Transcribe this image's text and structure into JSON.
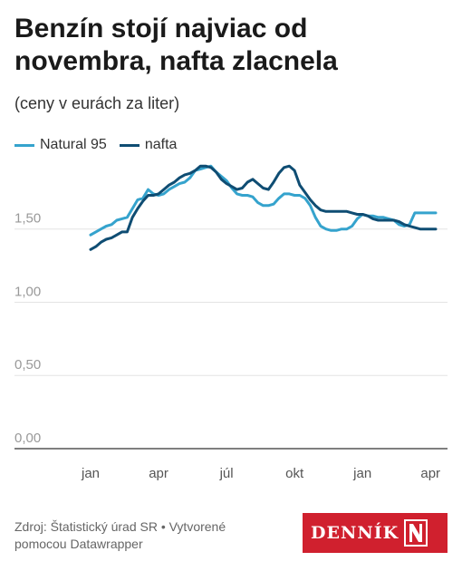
{
  "header": {
    "title": "Benzín stojí najviac od novembra, nafta zlacnela",
    "subtitle": "(ceny v eurách za liter)"
  },
  "legend": [
    {
      "label": "Natural 95",
      "color": "#35a3cd"
    },
    {
      "label": "nafta",
      "color": "#0f4d73"
    }
  ],
  "footer": {
    "source": "Zdroj: Štatistický úrad SR • Vytvorené pomocou Datawrapper"
  },
  "logo": {
    "text": "DENNÍK",
    "mark": "N"
  },
  "chart_data": {
    "type": "line",
    "xlabel": "",
    "ylabel": "",
    "ylim": [
      0,
      1.95
    ],
    "xlim": [
      0,
      66
    ],
    "y_ticks": [
      {
        "value": 0,
        "label": "0,00"
      },
      {
        "value": 0.5,
        "label": "0,50"
      },
      {
        "value": 1.0,
        "label": "1,00"
      },
      {
        "value": 1.5,
        "label": "1,50"
      }
    ],
    "x_ticks": [
      {
        "value": 0,
        "label": "jan"
      },
      {
        "value": 13,
        "label": "apr"
      },
      {
        "value": 26,
        "label": "júl"
      },
      {
        "value": 39,
        "label": "okt"
      },
      {
        "value": 52,
        "label": "jan"
      },
      {
        "value": 65,
        "label": "apr"
      }
    ],
    "grid": true,
    "legend_position": "top-left",
    "series": [
      {
        "name": "Natural 95",
        "color": "#35a3cd",
        "x": [
          0,
          1,
          2,
          3,
          4,
          5,
          6,
          7,
          8,
          9,
          10,
          11,
          12,
          13,
          14,
          15,
          16,
          17,
          18,
          19,
          20,
          21,
          22,
          23,
          24,
          25,
          26,
          27,
          28,
          29,
          30,
          31,
          32,
          33,
          34,
          35,
          36,
          37,
          38,
          39,
          40,
          41,
          42,
          43,
          44,
          45,
          46,
          47,
          48,
          49,
          50,
          51,
          52,
          53,
          54,
          55,
          56,
          57,
          58,
          59,
          60,
          61,
          62,
          63,
          64,
          65,
          66
        ],
        "values": [
          1.46,
          1.48,
          1.5,
          1.52,
          1.53,
          1.56,
          1.57,
          1.58,
          1.64,
          1.7,
          1.71,
          1.77,
          1.74,
          1.73,
          1.74,
          1.77,
          1.79,
          1.81,
          1.82,
          1.85,
          1.9,
          1.91,
          1.92,
          1.93,
          1.89,
          1.86,
          1.83,
          1.78,
          1.74,
          1.73,
          1.73,
          1.72,
          1.68,
          1.66,
          1.66,
          1.67,
          1.71,
          1.74,
          1.74,
          1.73,
          1.73,
          1.71,
          1.66,
          1.58,
          1.52,
          1.5,
          1.49,
          1.49,
          1.5,
          1.5,
          1.52,
          1.57,
          1.6,
          1.59,
          1.59,
          1.58,
          1.58,
          1.57,
          1.56,
          1.53,
          1.52,
          1.53,
          1.61,
          1.61,
          1.61,
          1.61,
          1.61
        ]
      },
      {
        "name": "nafta",
        "color": "#0f4d73",
        "x": [
          0,
          1,
          2,
          3,
          4,
          5,
          6,
          7,
          8,
          9,
          10,
          11,
          12,
          13,
          14,
          15,
          16,
          17,
          18,
          19,
          20,
          21,
          22,
          23,
          24,
          25,
          26,
          27,
          28,
          29,
          30,
          31,
          32,
          33,
          34,
          35,
          36,
          37,
          38,
          39,
          40,
          41,
          42,
          43,
          44,
          45,
          46,
          47,
          48,
          49,
          50,
          51,
          52,
          53,
          54,
          55,
          56,
          57,
          58,
          59,
          60,
          61,
          62,
          63,
          64,
          65,
          66
        ],
        "values": [
          1.36,
          1.38,
          1.41,
          1.43,
          1.44,
          1.46,
          1.48,
          1.48,
          1.58,
          1.64,
          1.69,
          1.73,
          1.73,
          1.74,
          1.77,
          1.8,
          1.82,
          1.85,
          1.87,
          1.88,
          1.9,
          1.93,
          1.93,
          1.92,
          1.89,
          1.84,
          1.81,
          1.79,
          1.77,
          1.78,
          1.82,
          1.84,
          1.81,
          1.78,
          1.77,
          1.82,
          1.88,
          1.92,
          1.93,
          1.9,
          1.8,
          1.75,
          1.7,
          1.66,
          1.63,
          1.62,
          1.62,
          1.62,
          1.62,
          1.62,
          1.61,
          1.6,
          1.6,
          1.59,
          1.57,
          1.56,
          1.56,
          1.56,
          1.56,
          1.55,
          1.53,
          1.52,
          1.51,
          1.5,
          1.5,
          1.5,
          1.5
        ]
      }
    ]
  }
}
